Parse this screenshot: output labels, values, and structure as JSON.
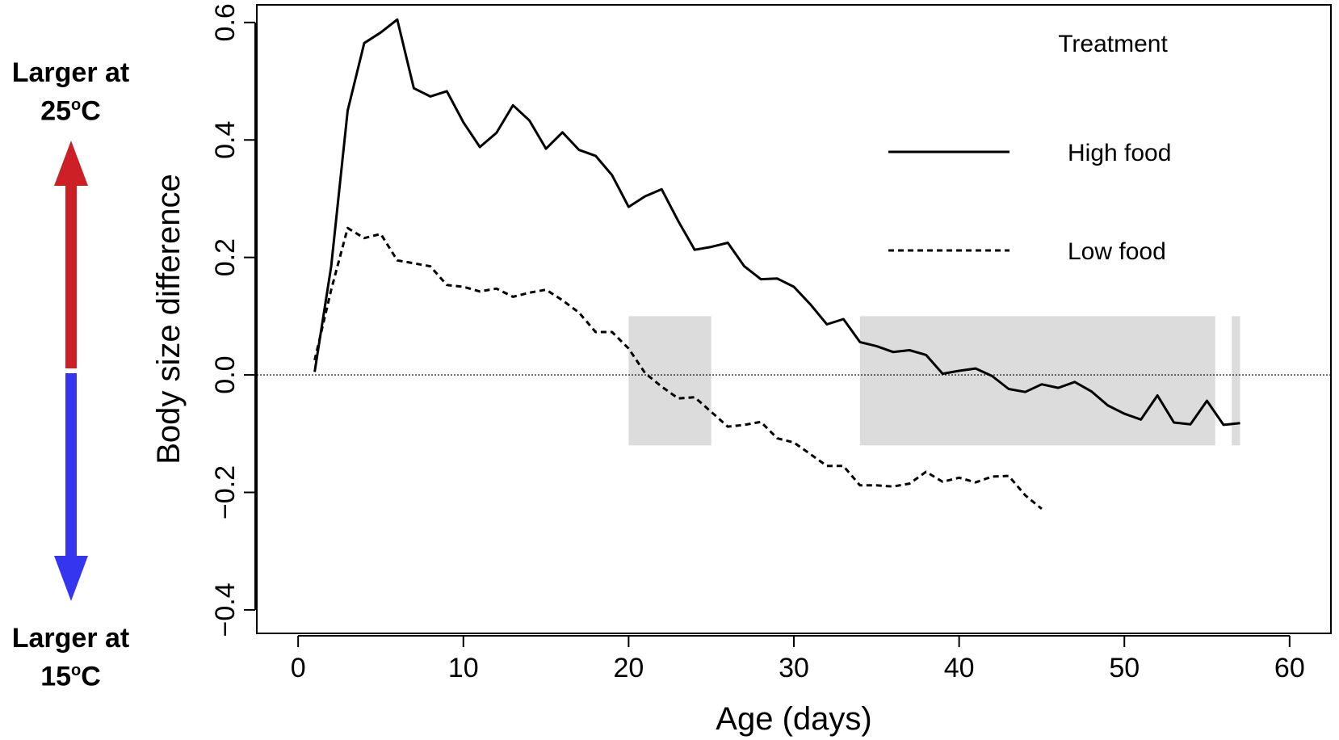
{
  "side_labels": {
    "top_line1": "Larger at",
    "top_temp": "25",
    "top_unit": "C",
    "bottom_line1": "Larger at",
    "bottom_temp": "15",
    "bottom_unit": "C",
    "degree_mark": "o",
    "arrow_up_color": "#cc1f26",
    "arrow_down_color": "#3535f0"
  },
  "chart_data": {
    "type": "line",
    "title": "",
    "xlabel": "Age (days)",
    "ylabel": "Body size difference",
    "xlim": [
      -2.5,
      62.5
    ],
    "ylim": [
      -0.44,
      0.63
    ],
    "xticks": [
      0,
      10,
      20,
      30,
      40,
      50,
      60
    ],
    "yticks": [
      -0.4,
      -0.2,
      0.0,
      0.2,
      0.4,
      0.6
    ],
    "ytick_labels": [
      "−0.4",
      "−0.2",
      "0.0",
      "0.2",
      "0.4",
      "0.6"
    ],
    "grid": false,
    "legend": {
      "title": "Treatment",
      "placement": "top-right"
    },
    "reference_line": {
      "y": 0,
      "style": "dotted"
    },
    "shaded_regions": [
      {
        "x0": 20,
        "x1": 25,
        "y0": -0.12,
        "y1": 0.1
      },
      {
        "x0": 34,
        "x1": 55.5,
        "y0": -0.12,
        "y1": 0.1
      },
      {
        "x0": 56.5,
        "x1": 57,
        "y0": -0.12,
        "y1": 0.1
      }
    ],
    "series": [
      {
        "name": "High food",
        "style": "solid",
        "x": [
          1,
          2,
          3,
          4,
          5,
          6,
          7,
          8,
          9,
          10,
          11,
          12,
          13,
          14,
          15,
          16,
          17,
          18,
          19,
          20,
          21,
          22,
          23,
          24,
          25,
          26,
          27,
          28,
          29,
          30,
          31,
          32,
          33,
          34,
          35,
          36,
          37,
          38,
          39,
          40,
          41,
          42,
          43,
          44,
          45,
          46,
          47,
          48,
          49,
          50,
          51,
          52,
          53,
          54,
          55,
          56,
          57
        ],
        "values": [
          0.005,
          0.185,
          0.45,
          0.565,
          0.583,
          0.605,
          0.488,
          0.474,
          0.483,
          0.43,
          0.388,
          0.412,
          0.459,
          0.433,
          0.385,
          0.413,
          0.383,
          0.373,
          0.34,
          0.286,
          0.304,
          0.316,
          0.262,
          0.213,
          0.218,
          0.225,
          0.185,
          0.163,
          0.164,
          0.15,
          0.12,
          0.086,
          0.095,
          0.056,
          0.049,
          0.039,
          0.042,
          0.034,
          0.002,
          0.007,
          0.011,
          -0.002,
          -0.024,
          -0.029,
          -0.016,
          -0.022,
          -0.012,
          -0.028,
          -0.052,
          -0.066,
          -0.076,
          -0.035,
          -0.081,
          -0.084,
          -0.044,
          -0.085,
          -0.082
        ]
      },
      {
        "name": "Low food",
        "style": "dashed",
        "x": [
          1,
          2,
          3,
          4,
          5,
          6,
          7,
          8,
          9,
          10,
          11,
          12,
          13,
          14,
          15,
          16,
          17,
          18,
          19,
          20,
          21,
          22,
          23,
          24,
          25,
          26,
          27,
          28,
          29,
          30,
          31,
          32,
          33,
          34,
          35,
          36,
          37,
          38,
          39,
          40,
          41,
          42,
          43,
          44,
          45
        ],
        "values": [
          0.025,
          0.145,
          0.25,
          0.233,
          0.24,
          0.195,
          0.19,
          0.185,
          0.153,
          0.15,
          0.142,
          0.147,
          0.133,
          0.14,
          0.145,
          0.127,
          0.106,
          0.073,
          0.073,
          0.045,
          0.003,
          -0.02,
          -0.04,
          -0.038,
          -0.063,
          -0.088,
          -0.085,
          -0.08,
          -0.108,
          -0.115,
          -0.135,
          -0.155,
          -0.155,
          -0.188,
          -0.188,
          -0.19,
          -0.185,
          -0.165,
          -0.182,
          -0.175,
          -0.183,
          -0.173,
          -0.172,
          -0.205,
          -0.228
        ]
      }
    ]
  }
}
